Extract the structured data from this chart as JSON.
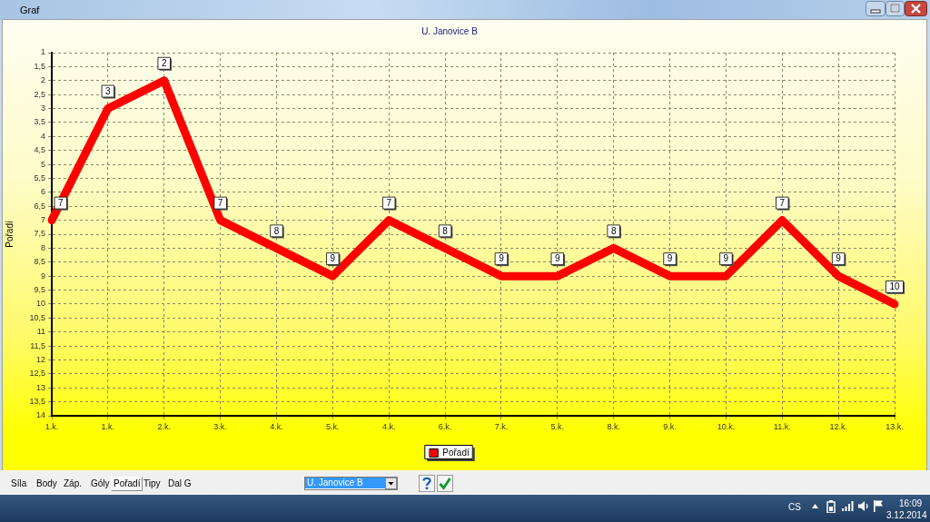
{
  "chart_data": {
    "type": "line",
    "title": "U. Janovice B",
    "ylabel": "Pořadí",
    "categories": [
      "1.k.",
      "1.k.",
      "2.k.",
      "3.k.",
      "4.k.",
      "5.k.",
      "4.k.",
      "6.k.",
      "7.k.",
      "5.k.",
      "8.k.",
      "9.k.",
      "10.k.",
      "11.k.",
      "12.k.",
      "13.k."
    ],
    "series": [
      {
        "name": "Pořadí",
        "color": "#ff0000",
        "values": [
          7,
          3,
          2,
          7,
          8,
          9,
          7,
          8,
          9,
          9,
          8,
          9,
          9,
          7,
          9,
          10
        ]
      }
    ],
    "ylim": [
      14,
      1
    ],
    "yticks": [
      1,
      {
        "value": 1.5,
        "label": "1,5"
      },
      2,
      {
        "value": 2.5,
        "label": "2,5"
      },
      3,
      {
        "value": 3.5,
        "label": "3,5"
      },
      4,
      {
        "value": 4.5,
        "label": "4,5"
      },
      5,
      {
        "value": 5.5,
        "label": "5,5"
      },
      6,
      {
        "value": 6.5,
        "label": "6,5"
      },
      7,
      {
        "value": 7.5,
        "label": "7,5"
      },
      8,
      {
        "value": 8.5,
        "label": "8,5"
      },
      9,
      {
        "value": 9.5,
        "label": "9,5"
      },
      10,
      {
        "value": 10.5,
        "label": "10,5"
      },
      11,
      {
        "value": 11.5,
        "label": "11,5"
      },
      12,
      {
        "value": 12.5,
        "label": "12,5"
      },
      13,
      {
        "value": 13.5,
        "label": "13,5"
      },
      14
    ],
    "grid": true,
    "legend": "bottom",
    "marker": "none",
    "data_labels": true,
    "annotations": [
      "Graf",
      "Síla",
      "Body",
      "Záp.",
      "Góly",
      "Pořadí",
      "Tipy",
      "Dal G",
      "U. Janovice B",
      "CS",
      "16:09",
      "3.12.2014"
    ]
  }
}
